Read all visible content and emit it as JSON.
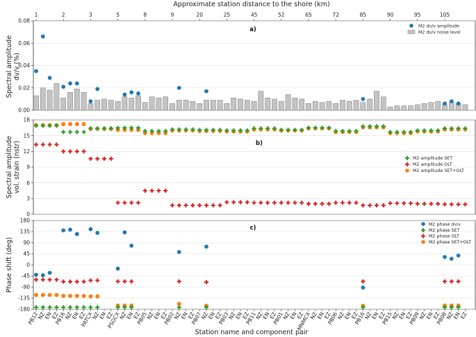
{
  "colors": {
    "blue": "#1f77b4",
    "green": "#2ca02c",
    "red": "#d62728",
    "orange": "#ff7f0e",
    "grey_fill": "#c4c4c4",
    "grey_edge": "#777777",
    "grid": "#dddddd"
  },
  "figure": {
    "top_label": "Approximate station distance to the shore (km)",
    "x_label": "Station name and component pair",
    "top_ticks": [
      "1",
      "2",
      "3",
      "5",
      "8",
      "9",
      "20",
      "25",
      "45",
      "52",
      "65",
      "72",
      "85",
      "90",
      "95",
      "105"
    ],
    "components": [
      "PB12",
      "NZ",
      "EN",
      "EZ",
      "PB16",
      "NZ",
      "EN",
      "EZ",
      "PATCX",
      "NZ",
      "EN",
      "EZ",
      "PSGCX",
      "NZ",
      "EN",
      "EZ",
      "PB05",
      "NZ",
      "EN",
      "EZ",
      "PB02",
      "NZ",
      "EN",
      "EZ",
      "PB07",
      "NZ",
      "EN",
      "EZ",
      "PB03",
      "NZ",
      "EN",
      "EZ",
      "PB11",
      "NZ",
      "EN",
      "EZ",
      "PB01",
      "NZ",
      "EN",
      "EZ",
      "MNMCX",
      "NZ",
      "EN",
      "EZ",
      "PB06",
      "NZ",
      "EN",
      "EZ",
      "PB16",
      "NZ",
      "EN",
      "EZ",
      "PB15",
      "NZ",
      "EN",
      "EZ",
      "PB09",
      "NZ",
      "EN",
      "EZ",
      "PB08",
      "NZ",
      "EN",
      "EZ"
    ]
  },
  "chart_data": [
    {
      "type": "bar",
      "panel": "a)",
      "ylabel": "Spectral amplitude dv/v (%)",
      "ylim": [
        0,
        0.08
      ],
      "yticks": [
        "0.00",
        "0.02",
        "0.04",
        "0.06",
        "0.08"
      ],
      "legend": [
        "M2 dv/v amplitude",
        "M2 dv/v noise level"
      ],
      "noise": [
        0.013,
        0.02,
        0.018,
        0.024,
        0.011,
        0.016,
        0.019,
        0.016,
        0.006,
        0.009,
        0.01,
        0.009,
        0.008,
        0.012,
        0.011,
        0.013,
        0.007,
        0.012,
        0.011,
        0.012,
        0.006,
        0.009,
        0.009,
        0.008,
        0.006,
        0.009,
        0.009,
        0.009,
        0.006,
        0.011,
        0.01,
        0.009,
        0.008,
        0.017,
        0.011,
        0.01,
        0.008,
        0.014,
        0.011,
        0.01,
        0.006,
        0.008,
        0.007,
        0.008,
        0.006,
        0.009,
        0.008,
        0.009,
        0.007,
        0.01,
        0.017,
        0.012,
        0.003,
        0.004,
        0.004,
        0.004,
        0.005,
        0.006,
        0.007,
        0.008,
        0.005,
        0.007,
        0.006,
        0.005
      ],
      "amplitude": [
        0.035,
        0.066,
        0.029,
        null,
        0.021,
        0.024,
        0.024,
        null,
        0.008,
        0.019,
        null,
        null,
        null,
        0.014,
        0.016,
        0.015,
        null,
        null,
        null,
        null,
        null,
        0.02,
        null,
        null,
        null,
        0.017,
        null,
        null,
        null,
        null,
        null,
        null,
        null,
        null,
        null,
        null,
        null,
        null,
        null,
        null,
        null,
        null,
        null,
        null,
        null,
        null,
        null,
        null,
        0.01,
        null,
        null,
        null,
        null,
        null,
        null,
        null,
        null,
        null,
        null,
        null,
        0.006,
        0.008,
        0.006,
        null
      ]
    },
    {
      "type": "scatter",
      "panel": "b)",
      "ylabel": "Spectral amplitude vol. strain (nstr)",
      "ylim": [
        0,
        18
      ],
      "yticks": [
        "0",
        "3",
        "6",
        "9",
        "12",
        "15",
        "18"
      ],
      "legend": [
        "M2 amplitude SET",
        "M2 amplitude OLT",
        "M2 amplitude SET+OLT"
      ],
      "SET": [
        16.9,
        16.9,
        16.9,
        16.9,
        15.7,
        15.7,
        15.7,
        15.7,
        16.4,
        16.4,
        16.4,
        16.4,
        16.5,
        16.5,
        16.5,
        16.5,
        15.9,
        15.9,
        15.9,
        15.9,
        16.2,
        16.2,
        16.2,
        16.2,
        16.1,
        16.1,
        16.1,
        16.1,
        16.0,
        16.0,
        16.0,
        16.0,
        16.4,
        16.4,
        16.4,
        16.4,
        16.1,
        16.1,
        16.1,
        16.1,
        16.5,
        16.5,
        16.5,
        16.5,
        15.9,
        15.9,
        15.9,
        15.9,
        16.8,
        16.8,
        16.8,
        16.8,
        15.7,
        15.7,
        15.7,
        15.7,
        16.0,
        16.0,
        16.0,
        16.0,
        16.4,
        16.4,
        16.4,
        16.4
      ],
      "OLT": [
        13.3,
        13.3,
        13.3,
        13.3,
        12.0,
        12.0,
        12.0,
        12.0,
        10.6,
        10.6,
        10.6,
        10.6,
        2.2,
        2.2,
        2.2,
        2.2,
        4.5,
        4.5,
        4.5,
        4.5,
        1.7,
        1.7,
        1.7,
        1.7,
        1.7,
        1.7,
        1.7,
        1.7,
        2.3,
        2.3,
        2.3,
        2.3,
        2.2,
        2.2,
        2.2,
        2.2,
        2.2,
        2.2,
        2.2,
        2.2,
        2.0,
        2.0,
        2.0,
        2.0,
        2.2,
        2.2,
        2.2,
        2.2,
        1.7,
        1.7,
        1.7,
        1.7,
        2.1,
        2.1,
        2.1,
        2.1,
        2.0,
        2.0,
        2.0,
        2.0,
        1.9,
        1.9,
        1.9,
        1.9
      ],
      "SET_OLT": [
        17.0,
        17.0,
        17.0,
        17.0,
        17.2,
        17.2,
        17.2,
        17.2,
        16.3,
        16.3,
        16.3,
        16.3,
        16.1,
        16.1,
        16.1,
        16.1,
        15.5,
        15.5,
        15.5,
        15.5,
        16.0,
        16.0,
        16.0,
        16.0,
        15.9,
        15.9,
        15.9,
        15.9,
        15.8,
        15.8,
        15.8,
        15.8,
        16.2,
        16.2,
        16.2,
        16.2,
        16.0,
        16.0,
        16.0,
        16.0,
        16.4,
        16.4,
        16.4,
        16.4,
        15.7,
        15.7,
        15.7,
        15.7,
        16.6,
        16.6,
        16.6,
        16.6,
        15.5,
        15.5,
        15.5,
        15.5,
        15.8,
        15.8,
        15.8,
        15.8,
        16.2,
        16.2,
        16.2,
        16.2
      ]
    },
    {
      "type": "scatter",
      "panel": "c)",
      "ylabel": "Phase shift (deg)",
      "ylim": [
        -180,
        180
      ],
      "yticks": [
        "-180",
        "-135",
        "-90",
        "-45",
        "0",
        "45",
        "90",
        "135",
        "180"
      ],
      "legend": [
        "M2 phase dv/v",
        "M2 phase SET",
        "M2 phase OLT",
        "M2 phase SET+OLT"
      ],
      "dvv": [
        -40,
        -42,
        -32,
        null,
        140,
        143,
        125,
        null,
        145,
        130,
        null,
        null,
        -15,
        132,
        78,
        null,
        null,
        null,
        null,
        null,
        null,
        52,
        null,
        null,
        null,
        74,
        null,
        null,
        null,
        null,
        null,
        null,
        null,
        null,
        null,
        null,
        null,
        null,
        null,
        null,
        null,
        null,
        null,
        null,
        null,
        null,
        null,
        null,
        -92,
        null,
        null,
        null,
        null,
        null,
        null,
        null,
        null,
        null,
        null,
        null,
        32,
        25,
        38,
        null
      ],
      "SET": [
        -172,
        -172,
        -172,
        -172,
        -172,
        -172,
        -172,
        -172,
        -172,
        -172,
        null,
        null,
        -172,
        -172,
        -172,
        null,
        null,
        null,
        null,
        null,
        null,
        -172,
        null,
        null,
        null,
        -172,
        null,
        null,
        null,
        null,
        null,
        null,
        null,
        null,
        null,
        null,
        null,
        null,
        null,
        null,
        null,
        null,
        null,
        null,
        null,
        null,
        null,
        null,
        -172,
        null,
        null,
        null,
        null,
        null,
        null,
        null,
        null,
        null,
        null,
        null,
        -172,
        -172,
        -172,
        null
      ],
      "OLT": [
        -60,
        -60,
        -60,
        -60,
        -68,
        -68,
        -68,
        -68,
        -63,
        -63,
        null,
        null,
        -67,
        -67,
        -67,
        null,
        null,
        null,
        null,
        null,
        null,
        -67,
        null,
        null,
        null,
        -70,
        null,
        null,
        null,
        null,
        null,
        null,
        null,
        null,
        null,
        null,
        null,
        null,
        null,
        null,
        null,
        null,
        null,
        null,
        null,
        null,
        null,
        null,
        -67,
        null,
        null,
        null,
        null,
        null,
        null,
        null,
        null,
        null,
        null,
        null,
        -67,
        -67,
        -67,
        null
      ],
      "SET_OLT": [
        -122,
        -122,
        -122,
        -122,
        -126,
        -126,
        -126,
        -126,
        -128,
        -128,
        null,
        null,
        -165,
        -165,
        -165,
        null,
        null,
        null,
        null,
        null,
        null,
        -158,
        null,
        null,
        null,
        -166,
        null,
        null,
        null,
        null,
        null,
        null,
        null,
        null,
        null,
        null,
        null,
        null,
        null,
        null,
        null,
        null,
        null,
        null,
        null,
        null,
        null,
        null,
        -166,
        null,
        null,
        null,
        null,
        null,
        null,
        null,
        null,
        null,
        null,
        null,
        -165,
        -165,
        -165,
        null
      ]
    }
  ]
}
